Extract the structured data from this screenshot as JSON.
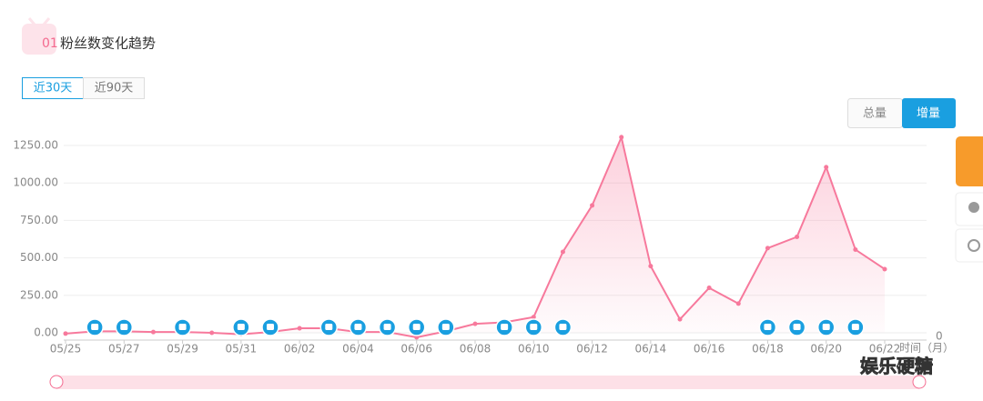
{
  "header": {
    "number": "01",
    "title": "粉丝数变化趋势"
  },
  "range_tabs": [
    "近30天",
    "近90天"
  ],
  "mode_tabs": [
    "总量",
    "增量"
  ],
  "watermark": "娱乐硬糖",
  "chart_data": {
    "type": "line",
    "categories": [
      "05/25",
      null,
      "05/27",
      null,
      "05/29",
      null,
      "05/31",
      null,
      "06/02",
      null,
      "06/04",
      null,
      "06/06",
      null,
      "06/08",
      null,
      "06/10",
      null,
      "06/12",
      null,
      "06/14",
      null,
      "06/16",
      null,
      "06/18",
      null,
      "06/20",
      null,
      "06/22"
    ],
    "values": [
      -5,
      10,
      10,
      5,
      5,
      0,
      -10,
      5,
      30,
      30,
      5,
      5,
      -30,
      10,
      60,
      70,
      105,
      540,
      850,
      1305,
      445,
      90,
      300,
      195,
      565,
      640,
      1105,
      555,
      425
    ],
    "color": "#f7799c",
    "x_label": "时间（月）",
    "y2_label": "0",
    "ylim": [
      0,
      1250
    ],
    "yticks": [
      {
        "value": 0,
        "label": "0.00"
      },
      {
        "value": 250,
        "label": "250.00"
      },
      {
        "value": 500,
        "label": "500.00"
      },
      {
        "value": 750,
        "label": "750.00"
      },
      {
        "value": 1000,
        "label": "1000.00"
      },
      {
        "value": 1250,
        "label": "1250.00"
      }
    ],
    "grid": true
  }
}
